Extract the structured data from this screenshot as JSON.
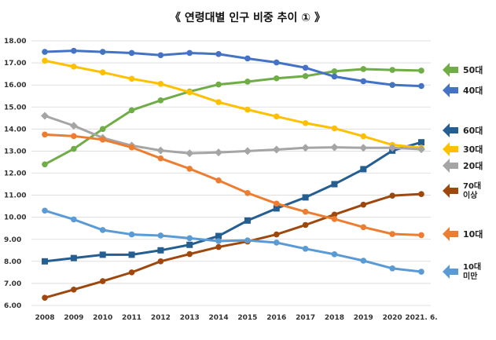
{
  "chart_data": {
    "type": "line",
    "title": "《 연령대별 인구 비중 추이 ① 》",
    "xlabel": "",
    "ylabel": "",
    "categories": [
      "2008",
      "2009",
      "2010",
      "2011",
      "2012",
      "2013",
      "2014",
      "2015",
      "2016",
      "2017",
      "2018",
      "2019",
      "2020",
      "2021. 6."
    ],
    "ylim": [
      6.0,
      18.0
    ],
    "yticks": [
      "6.00",
      "7.00",
      "8.00",
      "9.00",
      "10.00",
      "11.00",
      "12.00",
      "13.00",
      "14.00",
      "15.00",
      "16.00",
      "17.00",
      "18.00"
    ],
    "grid": true,
    "legend_placement": "right",
    "series": [
      {
        "name": "50대",
        "color": "#70ad47",
        "marker": "circle",
        "values": [
          12.4,
          13.1,
          14.0,
          14.85,
          15.3,
          15.7,
          16.02,
          16.15,
          16.3,
          16.4,
          16.62,
          16.72,
          16.68,
          16.65
        ]
      },
      {
        "name": "40대",
        "color": "#4472c4",
        "marker": "circle",
        "values": [
          17.5,
          17.55,
          17.5,
          17.45,
          17.35,
          17.45,
          17.4,
          17.2,
          17.02,
          16.78,
          16.38,
          16.17,
          16.0,
          15.95
        ]
      },
      {
        "name": "60대",
        "color": "#255e91",
        "marker": "square",
        "values": [
          8.0,
          8.15,
          8.3,
          8.3,
          8.5,
          8.75,
          9.15,
          9.85,
          10.4,
          10.9,
          11.5,
          12.18,
          13.02,
          13.4
        ]
      },
      {
        "name": "30대",
        "color": "#ffc000",
        "marker": "circle",
        "values": [
          17.1,
          16.83,
          16.57,
          16.28,
          16.05,
          15.67,
          15.22,
          14.88,
          14.57,
          14.27,
          14.03,
          13.67,
          13.28,
          13.15
        ]
      },
      {
        "name": "20대",
        "color": "#a5a5a5",
        "marker": "diamond",
        "values": [
          14.6,
          14.15,
          13.6,
          13.25,
          13.03,
          12.9,
          12.94,
          13.0,
          13.07,
          13.15,
          13.17,
          13.15,
          13.15,
          13.08
        ]
      },
      {
        "name": "70대\n이상",
        "color": "#9e480e",
        "marker": "circle",
        "values": [
          6.35,
          6.72,
          7.1,
          7.5,
          8.0,
          8.33,
          8.65,
          8.9,
          9.22,
          9.65,
          10.12,
          10.57,
          10.98,
          11.05
        ]
      },
      {
        "name": "10대",
        "color": "#ed7d31",
        "marker": "circle",
        "values": [
          13.75,
          13.68,
          13.52,
          13.17,
          12.67,
          12.2,
          11.67,
          11.1,
          10.62,
          10.25,
          9.92,
          9.55,
          9.24,
          9.19
        ]
      },
      {
        "name": "10대\n미만",
        "color": "#5b9bd5",
        "marker": "circle",
        "values": [
          10.3,
          9.9,
          9.42,
          9.22,
          9.17,
          9.05,
          8.92,
          8.95,
          8.85,
          8.57,
          8.32,
          8.03,
          7.68,
          7.53
        ]
      }
    ],
    "legend_order": [
      "50대",
      "40대",
      "60대",
      "30대",
      "20대",
      "70대\n이상",
      "10대",
      "10대\n미만"
    ]
  }
}
